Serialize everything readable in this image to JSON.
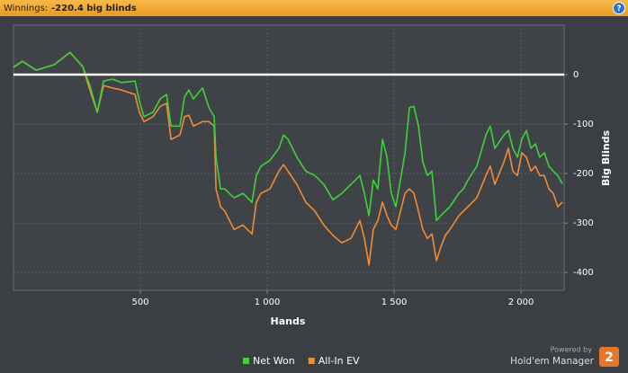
{
  "header": {
    "label": "Winnings:",
    "value": "-220.4 big blinds",
    "help": "?"
  },
  "chart_data": {
    "type": "line",
    "x_label": "Hands",
    "y_label": "Big Blinds",
    "xlim": [
      0,
      2170
    ],
    "ylim": [
      -436,
      100
    ],
    "xticks": [
      {
        "value": 500,
        "label": "500"
      },
      {
        "value": 1000,
        "label": "1 000"
      },
      {
        "value": 1500,
        "label": "1 500"
      },
      {
        "value": 2000,
        "label": "2 000"
      }
    ],
    "yticks": [
      0,
      -100,
      -200,
      -300,
      -400
    ],
    "grid": true,
    "x": [
      0,
      35,
      89,
      160,
      223,
      273,
      301,
      330,
      355,
      390,
      425,
      479,
      496,
      514,
      550,
      578,
      603,
      621,
      656,
      674,
      691,
      709,
      745,
      770,
      791,
      798,
      816,
      833,
      869,
      904,
      940,
      957,
      975,
      1011,
      1046,
      1064,
      1082,
      1117,
      1152,
      1188,
      1223,
      1259,
      1294,
      1330,
      1365,
      1383,
      1401,
      1418,
      1436,
      1454,
      1472,
      1489,
      1507,
      1543,
      1560,
      1578,
      1596,
      1613,
      1631,
      1649,
      1667,
      1684,
      1702,
      1720,
      1755,
      1773,
      1791,
      1826,
      1862,
      1879,
      1897,
      1933,
      1950,
      1968,
      1986,
      2003,
      2021,
      2039,
      2057,
      2074,
      2092,
      2110,
      2127,
      2145,
      2163
    ],
    "series": [
      {
        "name": "Net Won",
        "color": "#3fd13a",
        "values": [
          15,
          27,
          9,
          20,
          45,
          16,
          -22,
          -76,
          -13,
          -9,
          -16,
          -13,
          -53,
          -85,
          -76,
          -49,
          -40,
          -104,
          -104,
          -45,
          -31,
          -49,
          -27,
          -67,
          -85,
          -167,
          -231,
          -231,
          -249,
          -240,
          -258,
          -204,
          -185,
          -173,
          -149,
          -122,
          -131,
          -167,
          -195,
          -204,
          -222,
          -253,
          -240,
          -222,
          -204,
          -240,
          -285,
          -213,
          -231,
          -131,
          -167,
          -240,
          -267,
          -158,
          -67,
          -64,
          -104,
          -176,
          -204,
          -195,
          -295,
          -285,
          -276,
          -267,
          -240,
          -231,
          -213,
          -185,
          -122,
          -104,
          -149,
          -122,
          -113,
          -149,
          -167,
          -131,
          -113,
          -149,
          -140,
          -167,
          -158,
          -185,
          -195,
          -204,
          -220.4
        ]
      },
      {
        "name": "All-In EV",
        "color": "#f08c35",
        "values": [
          15,
          27,
          9,
          20,
          45,
          16,
          -31,
          -76,
          -22,
          -27,
          -31,
          -40,
          -76,
          -95,
          -85,
          -64,
          -58,
          -131,
          -122,
          -85,
          -82,
          -104,
          -95,
          -95,
          -104,
          -231,
          -267,
          -276,
          -313,
          -304,
          -322,
          -258,
          -240,
          -231,
          -195,
          -182,
          -195,
          -222,
          -258,
          -276,
          -304,
          -325,
          -340,
          -331,
          -295,
          -331,
          -385,
          -313,
          -295,
          -258,
          -285,
          -304,
          -313,
          -240,
          -231,
          -240,
          -276,
          -313,
          -331,
          -322,
          -376,
          -349,
          -325,
          -313,
          -285,
          -276,
          -267,
          -249,
          -204,
          -185,
          -222,
          -176,
          -149,
          -195,
          -204,
          -158,
          -167,
          -195,
          -185,
          -204,
          -204,
          -231,
          -240,
          -267,
          -258
        ]
      }
    ]
  },
  "branding": {
    "powered_by": "Powered by",
    "product": "Hold'em Manager",
    "version": "2"
  }
}
